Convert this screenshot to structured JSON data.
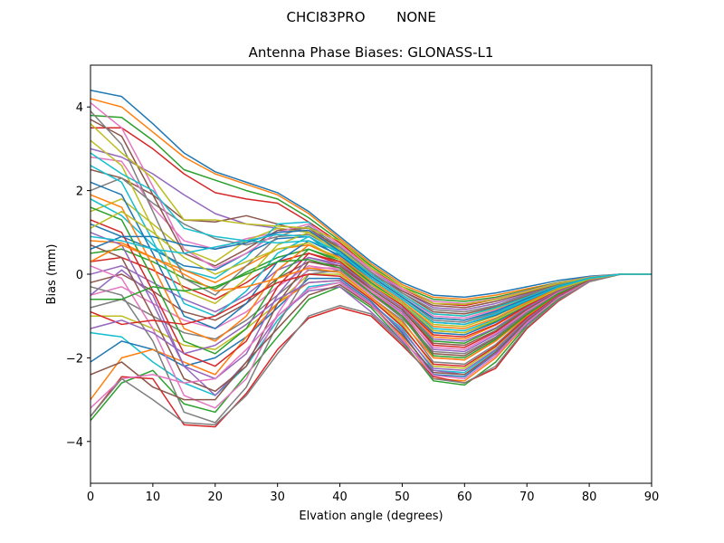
{
  "figure": {
    "suptitle_left": "CHCI83PRO",
    "suptitle_right": "NONE"
  },
  "chart_data": {
    "type": "line",
    "title": "Antenna Phase Biases: GLONASS-L1",
    "xlabel": "Elvation angle (degrees)",
    "ylabel": "Bias (mm)",
    "xlim": [
      0,
      90
    ],
    "ylim": [
      -5,
      5
    ],
    "xticks": [
      0,
      10,
      20,
      30,
      40,
      50,
      60,
      70,
      80,
      90
    ],
    "yticks": [
      -4,
      -2,
      0,
      2,
      4
    ],
    "grid": false,
    "legend": "none",
    "x": [
      0,
      5,
      10,
      15,
      20,
      25,
      30,
      35,
      40,
      45,
      50,
      55,
      60,
      65,
      70,
      75,
      80,
      85,
      90
    ],
    "palette": [
      "#1f77b4",
      "#ff7f0e",
      "#2ca02c",
      "#d62728",
      "#9467bd",
      "#8c564b",
      "#e377c2",
      "#7f7f7f",
      "#bcbd22",
      "#17becf"
    ],
    "series": [
      {
        "values": [
          4.4,
          4.25,
          3.6,
          2.9,
          2.45,
          2.2,
          1.95,
          1.5,
          0.9,
          0.3,
          -0.2,
          -0.5,
          -0.55,
          -0.45,
          -0.3,
          -0.15,
          -0.05,
          0.0,
          0.0
        ]
      },
      {
        "values": [
          4.2,
          4.0,
          3.4,
          2.8,
          2.4,
          2.15,
          1.9,
          1.45,
          0.85,
          0.25,
          -0.25,
          -0.55,
          -0.6,
          -0.5,
          -0.35,
          -0.2,
          -0.07,
          0.0,
          0.0
        ]
      },
      {
        "values": [
          3.8,
          3.75,
          3.2,
          2.5,
          2.25,
          2.0,
          1.8,
          1.35,
          0.8,
          0.2,
          -0.3,
          -0.6,
          -0.65,
          -0.55,
          -0.38,
          -0.2,
          -0.07,
          0.0,
          0.0
        ]
      },
      {
        "values": [
          3.5,
          3.5,
          3.0,
          2.4,
          1.95,
          1.8,
          1.7,
          1.25,
          0.75,
          0.15,
          -0.35,
          -0.7,
          -0.75,
          -0.6,
          -0.42,
          -0.22,
          -0.08,
          0.0,
          0.0
        ]
      },
      {
        "values": [
          3.0,
          2.8,
          2.4,
          1.9,
          1.45,
          1.2,
          1.1,
          1.0,
          0.7,
          0.1,
          -0.4,
          -0.8,
          -0.85,
          -0.7,
          -0.48,
          -0.25,
          -0.08,
          0.0,
          0.0
        ]
      },
      {
        "values": [
          2.5,
          2.3,
          1.9,
          1.3,
          1.25,
          1.4,
          1.2,
          1.0,
          0.65,
          0.05,
          -0.45,
          -0.9,
          -0.95,
          -0.78,
          -0.52,
          -0.27,
          -0.09,
          0.0,
          0.0
        ]
      },
      {
        "values": [
          2.8,
          2.7,
          1.6,
          0.8,
          0.6,
          0.85,
          1.0,
          1.05,
          0.6,
          0.0,
          -0.5,
          -1.0,
          -1.05,
          -0.85,
          -0.56,
          -0.28,
          -0.09,
          0.0,
          0.0
        ]
      },
      {
        "values": [
          2.0,
          2.3,
          1.7,
          1.2,
          0.85,
          0.7,
          0.9,
          0.95,
          0.55,
          -0.05,
          -0.55,
          -1.1,
          -1.15,
          -0.92,
          -0.6,
          -0.3,
          -0.1,
          0.0,
          0.0
        ]
      },
      {
        "values": [
          1.5,
          1.8,
          1.2,
          0.6,
          0.3,
          0.8,
          1.1,
          1.0,
          0.5,
          -0.1,
          -0.6,
          -1.2,
          -1.25,
          -1.0,
          -0.65,
          -0.32,
          -0.1,
          0.0,
          0.0
        ]
      },
      {
        "values": [
          1.8,
          1.4,
          0.7,
          0.1,
          -0.1,
          0.4,
          1.2,
          1.25,
          0.45,
          -0.15,
          -0.65,
          -1.3,
          -1.35,
          -1.08,
          -0.7,
          -0.34,
          -0.11,
          0.0,
          0.0
        ]
      },
      {
        "values": [
          1.2,
          0.9,
          0.6,
          0.2,
          0.1,
          0.5,
          0.85,
          0.9,
          0.4,
          -0.2,
          -0.7,
          -1.4,
          -1.45,
          -1.15,
          -0.74,
          -0.36,
          -0.11,
          0.0,
          0.0
        ]
      },
      {
        "values": [
          0.8,
          0.75,
          0.4,
          0.1,
          -0.2,
          0.2,
          0.6,
          0.7,
          0.35,
          -0.25,
          -0.75,
          -1.5,
          -1.55,
          -1.22,
          -0.78,
          -0.38,
          -0.12,
          0.0,
          0.0
        ]
      },
      {
        "values": [
          0.5,
          0.6,
          0.3,
          -0.1,
          -0.35,
          0.05,
          0.4,
          0.6,
          0.3,
          -0.3,
          -0.8,
          -1.6,
          -1.65,
          -1.3,
          -0.82,
          -0.4,
          -0.12,
          0.0,
          0.0
        ]
      },
      {
        "values": [
          0.3,
          0.4,
          0.1,
          -0.3,
          -0.6,
          -0.2,
          0.3,
          0.5,
          0.25,
          -0.35,
          -0.85,
          -1.7,
          -1.75,
          -1.38,
          -0.86,
          -0.42,
          -0.13,
          0.0,
          0.0
        ]
      },
      {
        "values": [
          0.0,
          0.2,
          -0.2,
          -0.6,
          -0.9,
          -0.5,
          0.1,
          0.4,
          0.2,
          -0.4,
          -0.9,
          -1.8,
          -1.85,
          -1.45,
          -0.9,
          -0.44,
          -0.13,
          0.0,
          0.0
        ]
      },
      {
        "values": [
          -0.2,
          0.0,
          -0.4,
          -0.9,
          -1.1,
          -0.7,
          -0.1,
          0.3,
          0.15,
          -0.45,
          -0.95,
          -1.9,
          -1.95,
          -1.52,
          -0.94,
          -0.46,
          -0.14,
          0.0,
          0.0
        ]
      },
      {
        "values": [
          -0.5,
          -0.3,
          -0.7,
          -1.1,
          -1.3,
          -0.9,
          -0.3,
          0.2,
          0.1,
          -0.5,
          -1.0,
          -2.0,
          -2.05,
          -1.6,
          -0.98,
          -0.48,
          -0.14,
          0.0,
          0.0
        ]
      },
      {
        "values": [
          -0.8,
          -0.6,
          -1.0,
          -1.4,
          -1.55,
          -1.1,
          -0.5,
          0.1,
          0.05,
          -0.55,
          -1.1,
          -2.1,
          -2.15,
          -1.68,
          -1.02,
          -0.5,
          -0.15,
          0.0,
          0.0
        ]
      },
      {
        "values": [
          -1.0,
          -1.0,
          -1.3,
          -1.7,
          -1.8,
          -1.3,
          -0.7,
          0.0,
          0.0,
          -0.6,
          -1.2,
          -2.2,
          -2.25,
          -1.75,
          -1.06,
          -0.52,
          -0.15,
          0.0,
          0.0
        ]
      },
      {
        "values": [
          -1.4,
          -1.5,
          -2.1,
          -2.6,
          -2.9,
          -2.2,
          -1.1,
          -0.3,
          -0.2,
          -0.7,
          -1.3,
          -2.3,
          -2.35,
          -1.82,
          -1.1,
          -0.54,
          -0.16,
          0.0,
          0.0
        ]
      },
      {
        "values": [
          -2.1,
          -1.6,
          -1.8,
          -2.2,
          -2.0,
          -1.5,
          -0.8,
          -0.1,
          -0.1,
          -0.65,
          -1.4,
          -2.4,
          -2.45,
          -1.9,
          -1.14,
          -0.56,
          -0.16,
          0.0,
          0.0
        ]
      },
      {
        "values": [
          -3.0,
          -2.0,
          -1.8,
          -2.1,
          -2.4,
          -1.5,
          -0.7,
          -0.2,
          -0.15,
          -0.7,
          -1.5,
          -2.5,
          -2.55,
          -2.0,
          -1.18,
          -0.58,
          -0.17,
          0.0,
          0.0
        ]
      },
      {
        "values": [
          -3.5,
          -2.6,
          -2.3,
          -3.1,
          -3.3,
          -2.4,
          -1.5,
          -0.6,
          -0.3,
          -0.8,
          -1.6,
          -2.55,
          -2.65,
          -2.1,
          -1.22,
          -0.6,
          -0.17,
          0.0,
          0.0
        ]
      },
      {
        "values": [
          -3.4,
          -2.45,
          -2.5,
          -3.6,
          -3.65,
          -2.85,
          -1.8,
          -1.05,
          -0.8,
          -1.0,
          -1.7,
          -2.45,
          -2.6,
          -2.25,
          -1.3,
          -0.65,
          -0.18,
          0.0,
          0.0
        ]
      },
      {
        "values": [
          -0.5,
          0.1,
          -0.5,
          -2.2,
          -2.9,
          -2.1,
          -1.0,
          -0.4,
          -0.3,
          -0.9,
          -1.6,
          -2.3,
          -2.4,
          -1.9,
          -1.2,
          -0.55,
          -0.16,
          0.0,
          0.0
        ]
      },
      {
        "values": [
          3.7,
          3.3,
          1.9,
          0.5,
          0.2,
          0.6,
          1.05,
          1.1,
          0.6,
          0.0,
          -0.4,
          -0.75,
          -0.8,
          -0.65,
          -0.45,
          -0.23,
          -0.08,
          0.0,
          0.0
        ]
      },
      {
        "values": [
          4.1,
          3.5,
          2.1,
          0.6,
          0.15,
          0.5,
          1.0,
          1.2,
          0.7,
          0.1,
          -0.35,
          -0.65,
          -0.7,
          -0.58,
          -0.4,
          -0.21,
          -0.07,
          0.0,
          0.0
        ]
      },
      {
        "values": [
          3.9,
          3.1,
          1.5,
          -0.1,
          -0.5,
          0.2,
          0.9,
          1.15,
          0.65,
          0.05,
          -0.45,
          -0.85,
          -0.9,
          -0.75,
          -0.5,
          -0.26,
          -0.09,
          0.0,
          0.0
        ]
      },
      {
        "values": [
          3.2,
          2.6,
          1.1,
          -0.4,
          -0.7,
          -0.1,
          0.7,
          1.0,
          0.6,
          0.0,
          -0.5,
          -0.95,
          -1.0,
          -0.82,
          -0.55,
          -0.28,
          -0.1,
          0.0,
          0.0
        ]
      },
      {
        "values": [
          2.6,
          2.2,
          0.8,
          -0.7,
          -1.0,
          -0.4,
          0.5,
          0.9,
          0.5,
          -0.05,
          -0.55,
          -1.05,
          -1.1,
          -0.9,
          -0.6,
          -0.3,
          -0.1,
          0.0,
          0.0
        ]
      },
      {
        "values": [
          2.2,
          1.9,
          0.5,
          -1.0,
          -1.3,
          -0.7,
          0.3,
          0.8,
          0.45,
          -0.1,
          -0.6,
          -1.15,
          -1.2,
          -0.98,
          -0.64,
          -0.32,
          -0.11,
          0.0,
          0.0
        ]
      },
      {
        "values": [
          1.9,
          1.6,
          0.2,
          -1.3,
          -1.6,
          -1.0,
          0.1,
          0.7,
          0.4,
          -0.15,
          -0.65,
          -1.25,
          -1.3,
          -1.05,
          -0.68,
          -0.34,
          -0.11,
          0.0,
          0.0
        ]
      },
      {
        "values": [
          1.6,
          1.3,
          -0.1,
          -1.6,
          -1.9,
          -1.3,
          -0.1,
          0.6,
          0.35,
          -0.2,
          -0.7,
          -1.35,
          -1.4,
          -1.12,
          -0.72,
          -0.36,
          -0.12,
          0.0,
          0.0
        ]
      },
      {
        "values": [
          1.3,
          1.0,
          -0.4,
          -1.9,
          -2.2,
          -1.6,
          -0.3,
          0.5,
          0.3,
          -0.25,
          -0.75,
          -1.45,
          -1.5,
          -1.2,
          -0.76,
          -0.38,
          -0.12,
          0.0,
          0.0
        ]
      },
      {
        "values": [
          1.0,
          0.7,
          -0.7,
          -2.2,
          -2.5,
          -1.9,
          -0.5,
          0.4,
          0.25,
          -0.3,
          -0.8,
          -1.55,
          -1.6,
          -1.28,
          -0.8,
          -0.4,
          -0.13,
          0.0,
          0.0
        ]
      },
      {
        "values": [
          0.7,
          0.4,
          -1.0,
          -2.5,
          -2.8,
          -2.2,
          -0.7,
          0.3,
          0.2,
          -0.35,
          -0.85,
          -1.65,
          -1.7,
          -1.35,
          -0.84,
          -0.42,
          -0.13,
          0.0,
          0.0
        ]
      },
      {
        "values": [
          0.2,
          -0.1,
          -1.3,
          -2.9,
          -3.2,
          -2.5,
          -0.95,
          0.15,
          0.15,
          -0.4,
          -0.95,
          -1.75,
          -1.8,
          -1.42,
          -0.88,
          -0.44,
          -0.14,
          0.0,
          0.0
        ]
      },
      {
        "values": [
          -0.3,
          -0.5,
          -1.6,
          -3.3,
          -3.55,
          -2.7,
          -1.2,
          0.0,
          0.1,
          -0.45,
          -1.05,
          -1.85,
          -1.9,
          -1.5,
          -0.92,
          -0.46,
          -0.14,
          0.0,
          0.0
        ]
      },
      {
        "values": [
          3.6,
          2.9,
          2.3,
          1.3,
          1.3,
          1.2,
          1.15,
          1.1,
          0.8,
          0.15,
          -0.3,
          -0.7,
          -0.72,
          -0.6,
          -0.42,
          -0.22,
          -0.08,
          0.0,
          0.0
        ]
      },
      {
        "values": [
          2.9,
          2.4,
          2.0,
          1.1,
          0.9,
          0.8,
          0.75,
          0.8,
          0.55,
          0.0,
          -0.5,
          -0.95,
          -1.0,
          -0.8,
          -0.55,
          -0.28,
          -0.09,
          0.0,
          0.0
        ]
      },
      {
        "values": [
          0.6,
          0.9,
          0.9,
          0.7,
          0.6,
          0.75,
          1.0,
          1.05,
          0.55,
          -0.05,
          -0.55,
          -1.05,
          -1.1,
          -0.88,
          -0.58,
          -0.3,
          -0.1,
          0.0,
          0.0
        ]
      },
      {
        "values": [
          0.3,
          0.7,
          0.4,
          0.0,
          -0.4,
          -0.3,
          -0.1,
          0.15,
          0.05,
          -0.55,
          -1.15,
          -2.0,
          -2.05,
          -1.6,
          -1.0,
          -0.49,
          -0.15,
          0.0,
          0.0
        ]
      },
      {
        "values": [
          -0.6,
          -0.6,
          -0.3,
          -0.4,
          -0.3,
          0.0,
          0.3,
          0.35,
          0.15,
          -0.45,
          -1.0,
          -1.95,
          -2.0,
          -1.56,
          -0.97,
          -0.47,
          -0.14,
          0.0,
          0.0
        ]
      },
      {
        "values": [
          -0.9,
          -1.2,
          -1.1,
          -1.2,
          -1.0,
          -0.6,
          -0.2,
          0.0,
          -0.05,
          -0.6,
          -1.25,
          -2.15,
          -2.2,
          -1.72,
          -1.04,
          -0.51,
          -0.15,
          0.0,
          0.0
        ]
      },
      {
        "values": [
          -1.3,
          -1.1,
          -1.4,
          -1.9,
          -1.7,
          -1.2,
          -0.6,
          -0.2,
          -0.15,
          -0.7,
          -1.35,
          -2.25,
          -2.3,
          -1.8,
          -1.08,
          -0.53,
          -0.16,
          0.0,
          0.0
        ]
      },
      {
        "values": [
          -2.4,
          -2.1,
          -2.7,
          -3.0,
          -3.0,
          -2.1,
          -1.3,
          -0.5,
          -0.25,
          -0.75,
          -1.45,
          -2.35,
          -2.4,
          -1.86,
          -1.12,
          -0.55,
          -0.16,
          0.0,
          0.0
        ]
      },
      {
        "values": [
          -3.2,
          -2.5,
          -2.4,
          -2.6,
          -2.5,
          -1.8,
          -1.0,
          -0.35,
          -0.2,
          -0.72,
          -1.55,
          -2.42,
          -2.5,
          -1.95,
          -1.16,
          -0.57,
          -0.17,
          0.0,
          0.0
        ]
      },
      {
        "values": [
          -3.4,
          -2.5,
          -3.0,
          -3.55,
          -3.6,
          -2.9,
          -1.9,
          -1.0,
          -0.75,
          -0.95,
          -1.65,
          -2.5,
          -2.6,
          -2.2,
          -1.27,
          -0.63,
          -0.18,
          0.0,
          0.0
        ]
      },
      {
        "values": [
          1.1,
          1.5,
          1.0,
          0.4,
          0.0,
          0.3,
          0.6,
          0.75,
          0.35,
          -0.25,
          -0.7,
          -1.35,
          -1.4,
          -1.1,
          -0.72,
          -0.36,
          -0.12,
          0.0,
          0.0
        ]
      },
      {
        "values": [
          0.9,
          0.8,
          0.6,
          0.5,
          0.65,
          0.8,
          0.95,
          0.9,
          0.5,
          -0.1,
          -0.6,
          -1.15,
          -1.2,
          -0.95,
          -0.62,
          -0.31,
          -0.1,
          0.0,
          0.0
        ]
      }
    ]
  }
}
